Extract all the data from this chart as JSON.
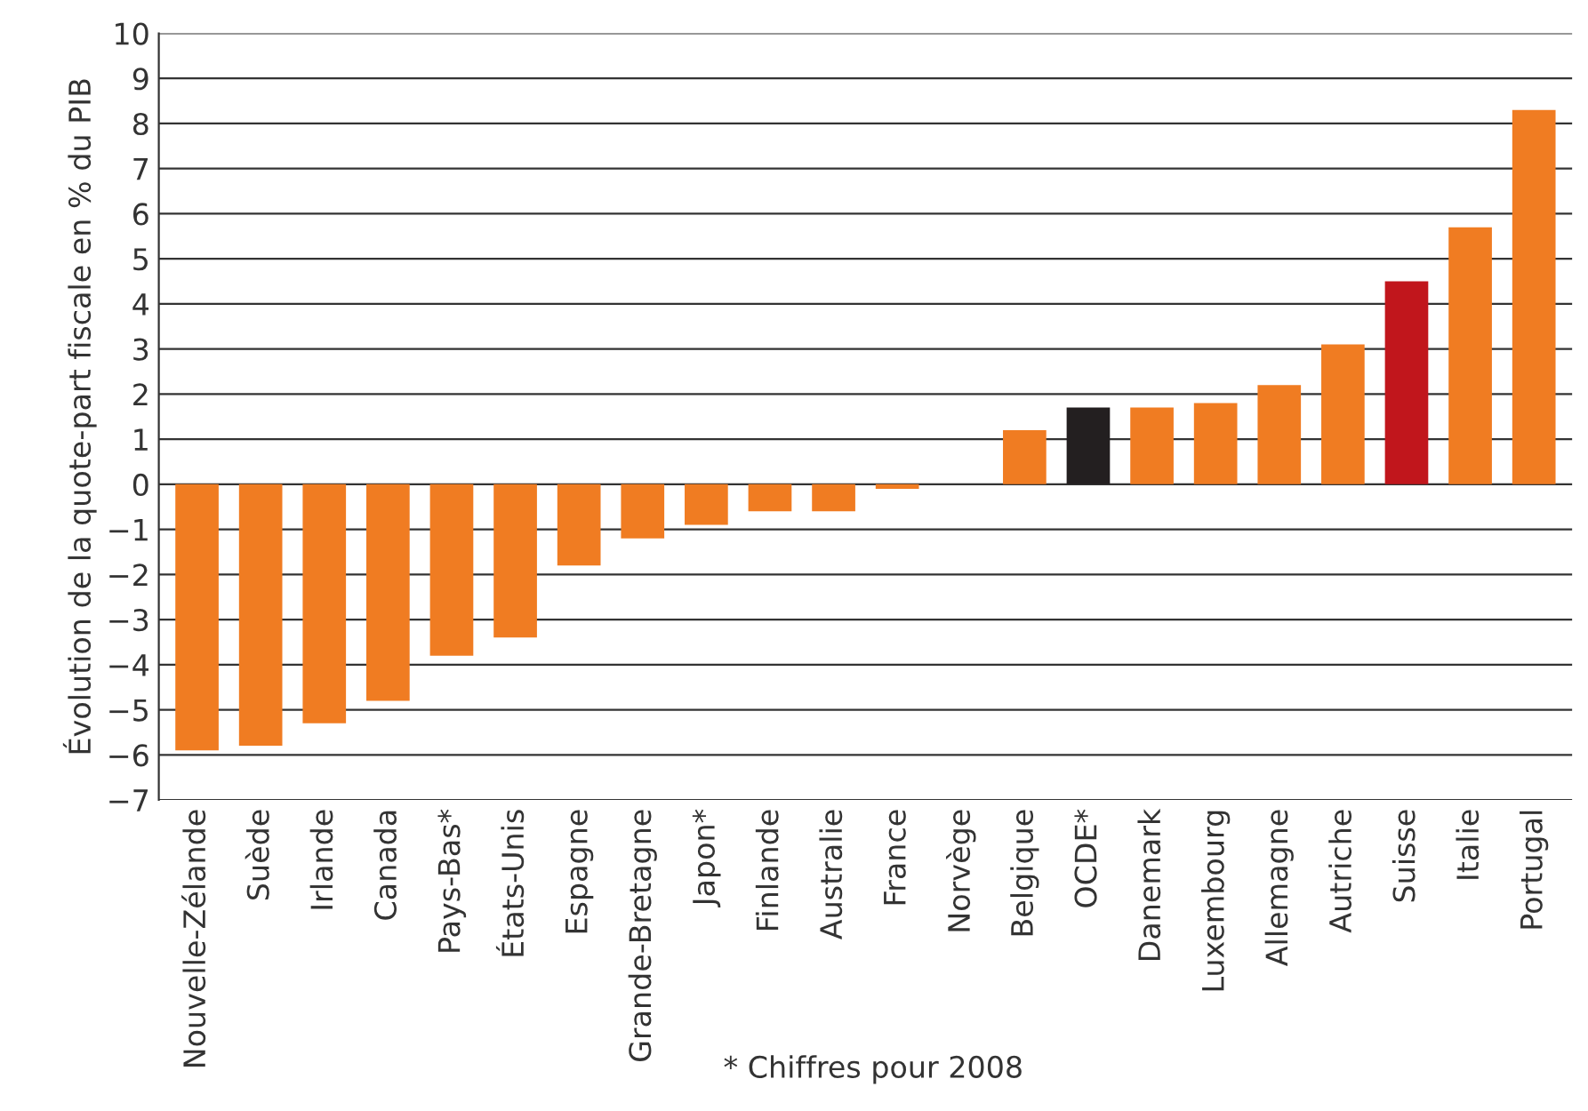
{
  "chart_data": {
    "type": "bar",
    "ylabel": "Évolution de la quote-part fiscale en % du PIB",
    "categories": [
      "Nouvelle-Zélande",
      "Suède",
      "Irlande",
      "Canada",
      "Pays-Bas*",
      "États-Unis",
      "Espagne",
      "Grande-Bretagne",
      "Japon*",
      "Finlande",
      "Australie",
      "France",
      "Norvège",
      "Belgique",
      "OCDE*",
      "Danemark",
      "Luxembourg",
      "Allemagne",
      "Autriche",
      "Suisse",
      "Italie",
      "Portugal"
    ],
    "values": [
      -5.9,
      -5.8,
      -5.3,
      -4.8,
      -3.8,
      -3.4,
      -1.8,
      -1.2,
      -0.9,
      -0.6,
      -0.6,
      -0.1,
      0,
      1.2,
      1.7,
      1.7,
      1.8,
      2.2,
      3.1,
      4.5,
      5.7,
      8.3
    ],
    "colors": [
      "#f07c22",
      "#f07c22",
      "#f07c22",
      "#f07c22",
      "#f07c22",
      "#f07c22",
      "#f07c22",
      "#f07c22",
      "#f07c22",
      "#f07c22",
      "#f07c22",
      "#f07c22",
      "#f07c22",
      "#f07c22",
      "#231f20",
      "#f07c22",
      "#f07c22",
      "#f07c22",
      "#f07c22",
      "#c1161c",
      "#f07c22",
      "#f07c22"
    ],
    "ylim": [
      -7,
      10
    ],
    "yticks": [
      -7,
      -6,
      -5,
      -4,
      -3,
      -2,
      -1,
      0,
      1,
      2,
      3,
      4,
      5,
      6,
      7,
      8,
      9,
      10
    ],
    "grid": "y",
    "annotations": [
      "* Chiffres pour 2008"
    ]
  }
}
